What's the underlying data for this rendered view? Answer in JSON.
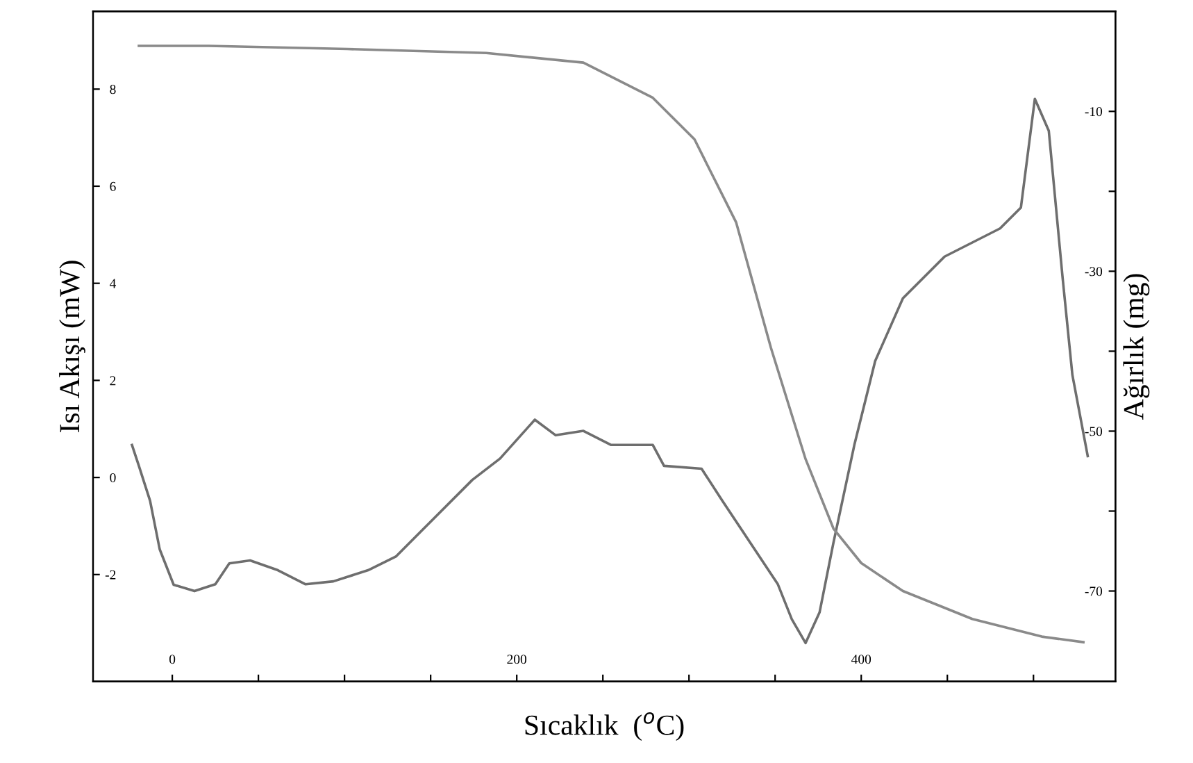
{
  "chart_data": {
    "type": "line",
    "xlabel": "Sıcaklık  ($^{o}$C)",
    "ylabel": "Isı Akışı (mW)",
    "y2label": "Ağırlık (mg)",
    "xlim": [
      -46,
      547.6
    ],
    "xticks": [
      0,
      {
        "value": 50,
        "label": null
      },
      {
        "value": 100,
        "label": null
      },
      {
        "value": 150,
        "label": null
      },
      200,
      {
        "value": 250,
        "label": null
      },
      {
        "value": 300,
        "label": null
      },
      {
        "value": 350,
        "label": null
      },
      400,
      {
        "value": 450,
        "label": null
      },
      {
        "value": 500,
        "label": null
      }
    ],
    "ylim": [
      -4.2,
      9.6
    ],
    "yticks": [
      -2,
      0,
      2,
      4,
      6,
      8
    ],
    "y2lim": [
      -81.3,
      2.5
    ],
    "y2ticks": [
      -70,
      {
        "value": -60,
        "label": null
      },
      -50,
      {
        "value": -40,
        "label": null
      },
      -30,
      {
        "value": -20,
        "label": null
      },
      -10
    ],
    "grid": false,
    "legend": false,
    "marker": "none",
    "line_style": "solid",
    "series": [
      {
        "color": "#6e6e6e",
        "x": [
          -23.4,
          -19.4,
          -12.9,
          -7.3,
          0.8,
          12.9,
          25,
          33.1,
          45.2,
          61.3,
          77.4,
          93.5,
          113.7,
          129.8,
          150,
          174.2,
          190.3,
          210.5,
          222.6,
          238.7,
          254.8,
          279,
          285.5,
          307.3,
          319.4,
          335.5,
          351.6,
          359.7,
          367.7,
          375.8,
          383.9,
          396,
          408.1,
          424.2,
          448.4,
          464.5,
          480.6,
          492.7,
          500.8,
          508.9,
          516.9,
          522.6,
          531.5
        ],
        "values": [
          0.67,
          0.24,
          -0.48,
          -1.48,
          -2.21,
          -2.34,
          -2.2,
          -1.77,
          -1.71,
          -1.91,
          -2.2,
          -2.14,
          -1.91,
          -1.63,
          -0.91,
          -0.05,
          0.39,
          1.19,
          0.87,
          0.96,
          0.67,
          0.67,
          0.24,
          0.18,
          -0.48,
          -1.34,
          -2.2,
          -2.92,
          -3.41,
          -2.78,
          -1.34,
          0.67,
          2.4,
          3.69,
          4.55,
          4.84,
          5.13,
          5.56,
          7.8,
          7.14,
          4.12,
          2.11,
          0.44
        ]
      },
      {
        "color": "#8a8a8a",
        "axis": "y2",
        "x": [
          -19.4,
          21,
          101.6,
          182.3,
          238.7,
          279,
          303.2,
          327.4,
          347.6,
          367.7,
          383.9,
          400,
          424.2,
          464.5,
          504.8,
          529
        ],
        "values": [
          -1.8,
          -1.8,
          -2.2,
          -2.7,
          -3.9,
          -8.3,
          -13.5,
          -23.9,
          -39.6,
          -53.5,
          -62.2,
          -66.5,
          -70,
          -73.5,
          -75.7,
          -76.4
        ]
      }
    ]
  }
}
